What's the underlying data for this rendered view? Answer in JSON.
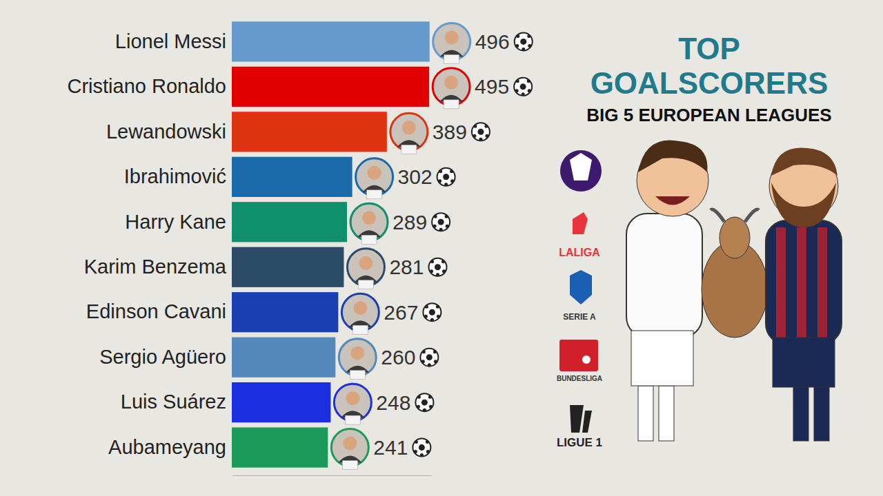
{
  "chart_data": {
    "type": "bar",
    "title": "TOP GOALSCORERS",
    "subtitle": "BIG 5 EUROPEAN LEAGUES",
    "orientation": "horizontal",
    "categories": [
      "Lionel Messi",
      "Cristiano Ronaldo",
      "Lewandowski",
      "Ibrahimović",
      "Harry Kane",
      "Karim Benzema",
      "Edinson Cavani",
      "Sergio Agüero",
      "Luis Suárez",
      "Aubameyang"
    ],
    "values": [
      496,
      495,
      389,
      302,
      289,
      281,
      267,
      260,
      248,
      241
    ],
    "colors": [
      "#6699cc",
      "#e00000",
      "#dd3311",
      "#1a6aaa",
      "#0f8f6b",
      "#2b4a66",
      "#1a3fb0",
      "#5588bb",
      "#1a2fe0",
      "#1c9a5a"
    ],
    "xlim": [
      0,
      500
    ],
    "data_labels": true,
    "tick_labels": "y",
    "grid": false,
    "annotations": [
      "LALIGA",
      "SERIE A",
      "BUNDESLIGA",
      "LIGUE 1"
    ]
  }
}
